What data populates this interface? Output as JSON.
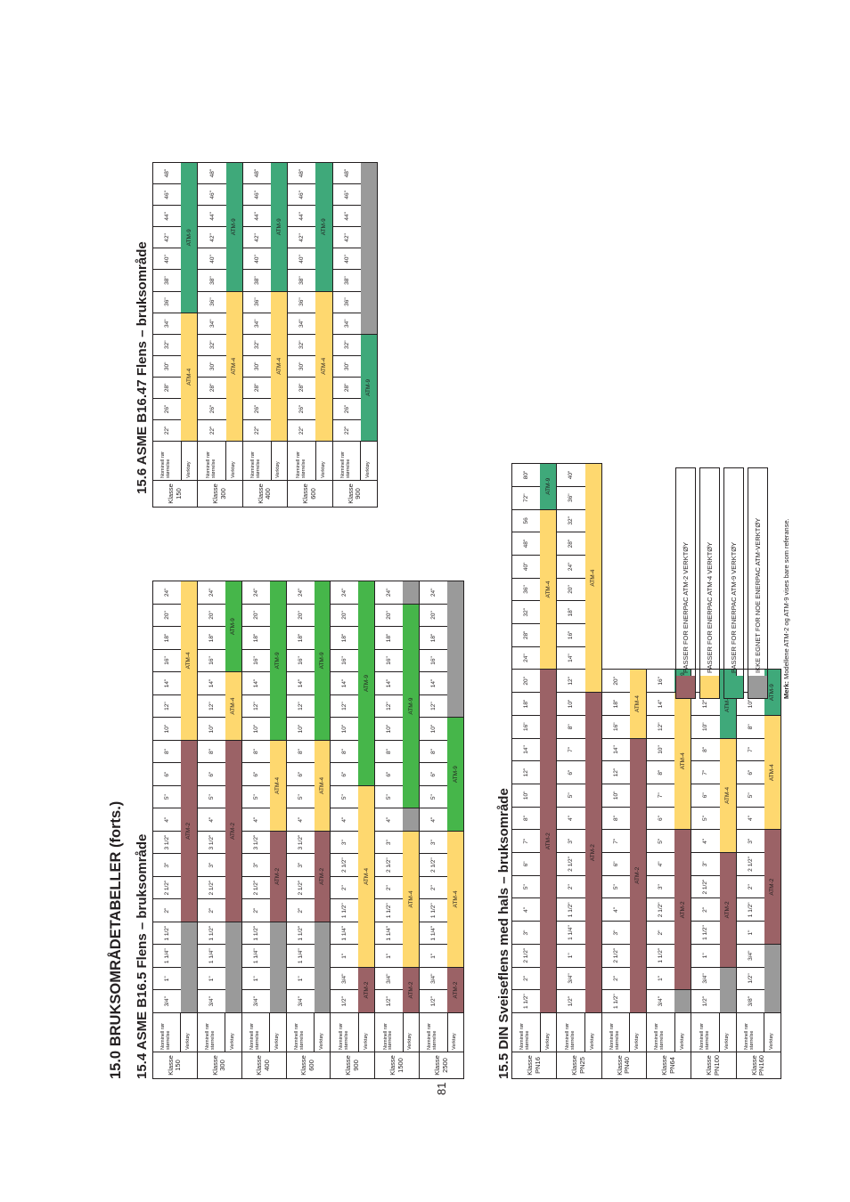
{
  "page": {
    "number": "81",
    "heading": "15.0 BRUKSOMRÅDETABELLER (forts.)",
    "sections": [
      {
        "title": "15.4 ASME B16.5 Flens – bruksområde"
      },
      {
        "title": "15.6 ASME B16.47 Flens – bruksområde"
      },
      {
        "title": "15.5 DIN Sveiseflens med hals – bruksområde"
      }
    ],
    "row_labels": {
      "size": "Nominell rør størrelse",
      "tool": "Verktøy"
    },
    "class_prefix": "Klasse",
    "colors": {
      "ATM-2": "#9b6266",
      "ATM-4": "#fed86f",
      "ATM-9": "#46b64a",
      "ATM-9-alt": "#3fa97a",
      "none": "#9a9a9a"
    }
  },
  "tables": [
    {
      "id": "b165",
      "blocks": [
        {
          "klasse": "150",
          "sizes": [
            "3/4\"",
            "1\"",
            "1 1/4\"",
            "1 1/2\"",
            "2\"",
            "2 1/2\"",
            "3\"",
            "3 1/2\"",
            "4\"",
            "5\"",
            "6\"",
            "8\"",
            "10\"",
            "12\"",
            "14\"",
            "16\"",
            "18\"",
            "20\"",
            "24\""
          ],
          "spans": [
            {
              "n": 4,
              "t": "none",
              "l": ""
            },
            {
              "n": 8,
              "t": "ATM-2",
              "l": "ATM-2"
            },
            {
              "n": 7,
              "t": "ATM-4",
              "l": "ATM-4"
            }
          ]
        },
        {
          "klasse": "300",
          "sizes": [
            "3/4\"",
            "1\"",
            "1 1/4\"",
            "1 1/2\"",
            "2\"",
            "2 1/2\"",
            "3\"",
            "3 1/2\"",
            "4\"",
            "5\"",
            "6\"",
            "8\"",
            "10\"",
            "12\"",
            "14\"",
            "16\"",
            "18\"",
            "20\"",
            "24\""
          ],
          "spans": [
            {
              "n": 4,
              "t": "none",
              "l": ""
            },
            {
              "n": 8,
              "t": "ATM-2",
              "l": "ATM-2"
            },
            {
              "n": 3,
              "t": "ATM-4",
              "l": "ATM-4"
            },
            {
              "n": 4,
              "t": "ATM-9",
              "l": "ATM-9"
            }
          ]
        },
        {
          "klasse": "400",
          "sizes": [
            "3/4\"",
            "1\"",
            "1 1/4\"",
            "1 1/2\"",
            "2\"",
            "2 1/2\"",
            "3\"",
            "3 1/2\"",
            "4\"",
            "5\"",
            "6\"",
            "8\"",
            "10\"",
            "12\"",
            "14\"",
            "16\"",
            "18\"",
            "20\"",
            "24\""
          ],
          "spans": [
            {
              "n": 4,
              "t": "none",
              "l": ""
            },
            {
              "n": 4,
              "t": "ATM-2",
              "l": "ATM-2"
            },
            {
              "n": 4,
              "t": "ATM-4",
              "l": "ATM-4"
            },
            {
              "n": 7,
              "t": "ATM-9",
              "l": "ATM-9"
            }
          ]
        },
        {
          "klasse": "600",
          "sizes": [
            "3/4\"",
            "1\"",
            "1 1/4\"",
            "1 1/2\"",
            "2\"",
            "2 1/2\"",
            "3\"",
            "3 1/2\"",
            "4\"",
            "5\"",
            "6\"",
            "8\"",
            "10\"",
            "12\"",
            "14\"",
            "16\"",
            "18\"",
            "20\"",
            "24\""
          ],
          "spans": [
            {
              "n": 4,
              "t": "none",
              "l": ""
            },
            {
              "n": 4,
              "t": "ATM-2",
              "l": "ATM-2"
            },
            {
              "n": 4,
              "t": "ATM-4",
              "l": "ATM-4"
            },
            {
              "n": 7,
              "t": "ATM-9",
              "l": "ATM-9"
            }
          ]
        },
        {
          "klasse": "900",
          "sizes": [
            "1/2\"",
            "3/4\"",
            "1\"",
            "1 1/4\"",
            "1 1/2\"",
            "2\"",
            "2 1/2\"",
            "3\"",
            "4\"",
            "5\"",
            "6\"",
            "8\"",
            "10\"",
            "12\"",
            "14\"",
            "16\"",
            "18\"",
            "20\"",
            "24\""
          ],
          "spans": [
            {
              "n": 2,
              "t": "ATM-2",
              "l": "ATM-2"
            },
            {
              "n": 8,
              "t": "ATM-4",
              "l": "ATM-4"
            },
            {
              "n": 9,
              "t": "ATM-9",
              "l": "ATM-9"
            }
          ]
        },
        {
          "klasse": "1500",
          "sizes": [
            "1/2\"",
            "3/4\"",
            "1\"",
            "1 1/4\"",
            "1 1/2\"",
            "2\"",
            "2 1/2\"",
            "3\"",
            "4\"",
            "5\"",
            "6\"",
            "8\"",
            "10\"",
            "12\"",
            "14\"",
            "16\"",
            "18\"",
            "20\"",
            "24\""
          ],
          "spans": [
            {
              "n": 2,
              "t": "ATM-2",
              "l": "ATM-2"
            },
            {
              "n": 6,
              "t": "ATM-4",
              "l": "ATM-4"
            },
            {
              "n": 1,
              "t": "none",
              "l": ""
            },
            {
              "n": 9,
              "t": "ATM-9",
              "l": "ATM-9"
            },
            {
              "n": 1,
              "t": "none",
              "l": ""
            }
          ]
        },
        {
          "klasse": "2500",
          "sizes": [
            "1/2\"",
            "3/4\"",
            "1\"",
            "1 1/4\"",
            "1 1/2\"",
            "2\"",
            "2 1/2\"",
            "3\"",
            "4\"",
            "5\"",
            "6\"",
            "8\"",
            "10\"",
            "12\"",
            "14\"",
            "16\"",
            "18\"",
            "20\"",
            "24\""
          ],
          "spans": [
            {
              "n": 2,
              "t": "ATM-2",
              "l": "ATM-2"
            },
            {
              "n": 6,
              "t": "ATM-4",
              "l": "ATM-4"
            },
            {
              "n": 5,
              "t": "ATM-9",
              "l": "ATM-9"
            },
            {
              "n": 6,
              "t": "none",
              "l": ""
            }
          ]
        }
      ]
    },
    {
      "id": "b1647",
      "blocks": [
        {
          "klasse": "150",
          "sizes": [
            "22\"",
            "26\"",
            "28\"",
            "30\"",
            "32\"",
            "34\"",
            "36\"",
            "38\"",
            "40\"",
            "42\"",
            "44\"",
            "46\"",
            "48\""
          ],
          "spans": [
            {
              "n": 6,
              "t": "ATM-4",
              "l": "ATM-4"
            },
            {
              "n": 7,
              "t": "ATM-9B",
              "l": "ATM-9"
            }
          ]
        },
        {
          "klasse": "300",
          "sizes": [
            "22\"",
            "26\"",
            "28\"",
            "30\"",
            "32\"",
            "34\"",
            "36\"",
            "38\"",
            "40\"",
            "42\"",
            "44\"",
            "46\"",
            "48\""
          ],
          "spans": [
            {
              "n": 7,
              "t": "ATM-4",
              "l": "ATM-4"
            },
            {
              "n": 6,
              "t": "ATM-9B",
              "l": "ATM-9"
            }
          ]
        },
        {
          "klasse": "400",
          "sizes": [
            "22\"",
            "26\"",
            "28\"",
            "30\"",
            "32\"",
            "34\"",
            "36\"",
            "38\"",
            "40\"",
            "42\"",
            "44\"",
            "46\"",
            "48\""
          ],
          "spans": [
            {
              "n": 7,
              "t": "ATM-4",
              "l": "ATM-4"
            },
            {
              "n": 6,
              "t": "ATM-9B",
              "l": "ATM-9"
            }
          ]
        },
        {
          "klasse": "600",
          "sizes": [
            "22\"",
            "26\"",
            "28\"",
            "30\"",
            "32\"",
            "34\"",
            "36\"",
            "38\"",
            "40\"",
            "42\"",
            "44\"",
            "46\"",
            "48\""
          ],
          "spans": [
            {
              "n": 7,
              "t": "ATM-4",
              "l": "ATM-4"
            },
            {
              "n": 6,
              "t": "ATM-9B",
              "l": "ATM-9"
            }
          ]
        },
        {
          "klasse": "900",
          "sizes": [
            "22\"",
            "26\"",
            "28\"",
            "30\"",
            "32\"",
            "34\"",
            "36\"",
            "38\"",
            "40\"",
            "42\"",
            "44\"",
            "46\"",
            "48\""
          ],
          "spans": [
            {
              "n": 5,
              "t": "ATM-9B",
              "l": "ATM-9"
            },
            {
              "n": 8,
              "t": "none",
              "l": ""
            }
          ]
        }
      ]
    },
    {
      "id": "din",
      "blocks": [
        {
          "klasse": "PN16",
          "sizes": [
            "1 1/2\"",
            "2\"",
            "2 1/2\"",
            "3\"",
            "4\"",
            "5\"",
            "6\"",
            "7\"",
            "8\"",
            "10\"",
            "12\"",
            "14\"",
            "16\"",
            "18\"",
            "20\"",
            "24\"",
            "28\"",
            "32\"",
            "36\"",
            "40\"",
            "48\"",
            "56",
            "72\"",
            "80\""
          ],
          "spans": [
            {
              "n": 15,
              "t": "ATM-2",
              "l": "ATM-2"
            },
            {
              "n": 7,
              "t": "ATM-4",
              "l": "ATM-4"
            },
            {
              "n": 2,
              "t": "ATM-9B",
              "l": "ATM-9"
            }
          ]
        },
        {
          "klasse": "PN25",
          "sizes": [
            "1/2\"",
            "3/4\"",
            "1\"",
            "1 1/4\"",
            "1 1/2\"",
            "2\"",
            "2 1/2\"",
            "3\"",
            "4\"",
            "5\"",
            "6\"",
            "7\"",
            "8\"",
            "10\"",
            "12\"",
            "14\"",
            "16\"",
            "18\"",
            "20\"",
            "24\"",
            "28\"",
            "32\"",
            "36\"",
            "40\""
          ],
          "spans": [
            {
              "n": 14,
              "t": "ATM-2",
              "l": "ATM-2"
            },
            {
              "n": 10,
              "t": "ATM-4",
              "l": "ATM-4"
            }
          ]
        },
        {
          "klasse": "PN40",
          "sizes": [
            "1 1/2\"",
            "2\"",
            "2 1/2\"",
            "3\"",
            "4\"",
            "5\"",
            "6\"",
            "7\"",
            "8\"",
            "10\"",
            "12\"",
            "14\"",
            "16\"",
            "18\"",
            "20\""
          ],
          "spans": [
            {
              "n": 12,
              "t": "ATM-2",
              "l": "ATM-2"
            },
            {
              "n": 3,
              "t": "ATM-4",
              "l": "ATM-4"
            }
          ]
        },
        {
          "klasse": "PN64",
          "sizes": [
            "3/4\"",
            "1\"",
            "1 1/2\"",
            "2\"",
            "2 1/2\"",
            "3\"",
            "4\"",
            "5\"",
            "6\"",
            "7\"",
            "8\"",
            "10\"",
            "12\"",
            "14\"",
            "16\""
          ],
          "spans": [
            {
              "n": 1,
              "t": "none",
              "l": ""
            },
            {
              "n": 7,
              "t": "ATM-2",
              "l": "ATM-2"
            },
            {
              "n": 6,
              "t": "ATM-4",
              "l": "ATM-4"
            },
            {
              "n": 1,
              "t": "ATM-9B",
              "l": "ATM-9"
            }
          ]
        },
        {
          "klasse": "PN100",
          "sizes": [
            "1/2\"",
            "3/4\"",
            "1\"",
            "1 1/2\"",
            "2\"",
            "2 1/2\"",
            "3\"",
            "4\"",
            "5\"",
            "6\"",
            "7\"",
            "8\"",
            "10\"",
            "12\"",
            "14\""
          ],
          "spans": [
            {
              "n": 2,
              "t": "none",
              "l": ""
            },
            {
              "n": 5,
              "t": "ATM-2",
              "l": "ATM-2"
            },
            {
              "n": 5,
              "t": "ATM-4",
              "l": "ATM-4"
            },
            {
              "n": 3,
              "t": "ATM-9B",
              "l": "ATM-9"
            }
          ]
        },
        {
          "klasse": "PN160",
          "sizes": [
            "3/8\"",
            "1/2\"",
            "3/4\"",
            "1\"",
            "1 1/2\"",
            "2\"",
            "2 1/2\"",
            "3\"",
            "4\"",
            "5\"",
            "6\"",
            "7\"",
            "8\"",
            "10\"",
            "12\""
          ],
          "spans": [
            {
              "n": 3,
              "t": "none",
              "l": ""
            },
            {
              "n": 5,
              "t": "ATM-2",
              "l": "ATM-2"
            },
            {
              "n": 5,
              "t": "ATM-4",
              "l": "ATM-4"
            },
            {
              "n": 2,
              "t": "ATM-9B",
              "l": "ATM-9"
            }
          ]
        }
      ]
    }
  ],
  "legend": {
    "items": [
      {
        "t": "ATM-2",
        "label": "PASSER FOR ENERPAC ATM-2 VERKTØY"
      },
      {
        "t": "ATM-4",
        "label": "PASSER FOR ENERPAC ATM-4 VERKTØY"
      },
      {
        "t": "ATM-9B",
        "label": "PASSER FOR ENERPAC ATM-9 VERKTØY"
      },
      {
        "t": "none",
        "label": "IKKE EGNET FOR NOE ENERPAC ATM-VERKTØY"
      }
    ],
    "note_bold": "Merk:",
    "note_text": " Modellene ATM-2 og ATM-9 vises bare som referanse."
  }
}
